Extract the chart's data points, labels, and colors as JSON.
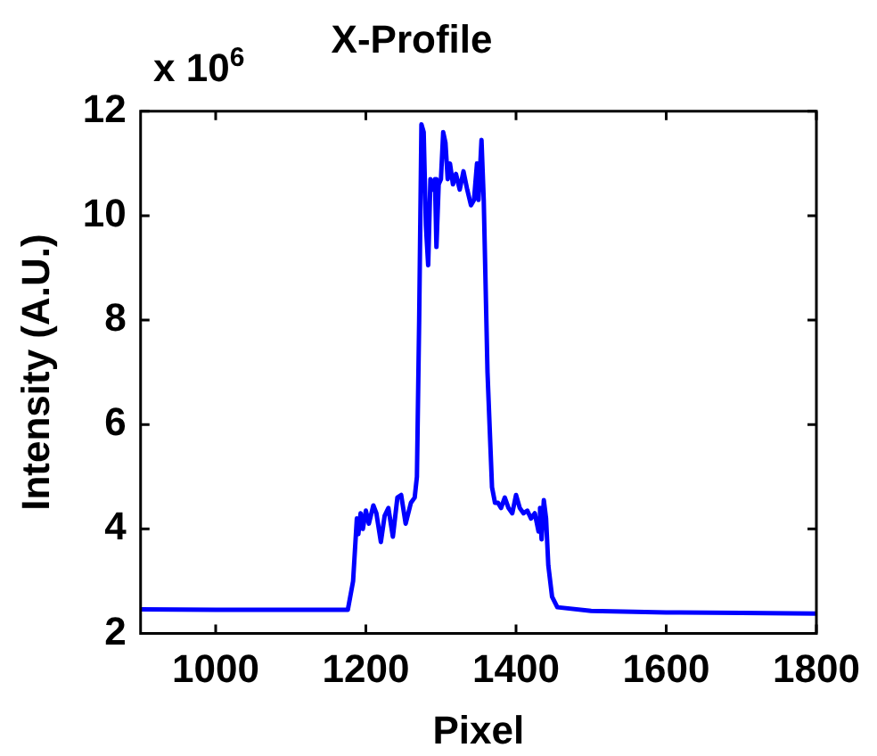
{
  "chart_data": {
    "type": "line",
    "title": "X-Profile",
    "xlabel": "Pixel",
    "ylabel": "Intensity (A.U.)",
    "annotations": [
      "x 10$^{6}$"
    ],
    "xlim": [
      900,
      1800
    ],
    "xticks": [
      1000,
      1200,
      1400,
      1600,
      1800
    ],
    "ylim": [
      2,
      12
    ],
    "yticks": [
      2,
      4,
      6,
      8,
      10,
      12
    ],
    "grid": false,
    "legend": false,
    "marker": "none",
    "line_style": "solid",
    "series": [
      {
        "color": "#0000ff",
        "x": [
          900,
          1000,
          1100,
          1176,
          1183,
          1188,
          1190,
          1193,
          1196,
          1200,
          1204,
          1210,
          1214,
          1220,
          1225,
          1230,
          1236,
          1242,
          1247,
          1253,
          1260,
          1265,
          1268,
          1271,
          1274,
          1277,
          1280,
          1283,
          1286,
          1289,
          1292,
          1294,
          1297,
          1300,
          1303,
          1306,
          1309,
          1312,
          1316,
          1320,
          1325,
          1330,
          1335,
          1340,
          1344,
          1348,
          1350,
          1354,
          1357,
          1362,
          1368,
          1372,
          1376,
          1380,
          1385,
          1390,
          1395,
          1400,
          1405,
          1410,
          1415,
          1420,
          1425,
          1430,
          1432,
          1434,
          1437,
          1440,
          1443,
          1448,
          1455,
          1500,
          1600,
          1700,
          1800
        ],
        "values": [
          2.46,
          2.45,
          2.45,
          2.45,
          3.0,
          4.2,
          3.9,
          4.3,
          4.0,
          4.35,
          4.1,
          4.45,
          4.3,
          3.75,
          4.25,
          4.4,
          3.85,
          4.6,
          4.65,
          4.1,
          4.5,
          4.6,
          5.0,
          8.0,
          11.75,
          11.6,
          9.8,
          9.05,
          10.7,
          10.5,
          10.7,
          9.4,
          10.6,
          10.7,
          11.6,
          11.4,
          10.7,
          11.0,
          10.6,
          10.8,
          10.5,
          10.85,
          10.5,
          10.2,
          10.3,
          11.0,
          10.3,
          11.45,
          10.3,
          7.0,
          4.8,
          4.5,
          4.5,
          4.4,
          4.6,
          4.4,
          4.3,
          4.65,
          4.4,
          4.3,
          4.35,
          4.2,
          4.3,
          3.95,
          4.4,
          3.8,
          4.55,
          4.2,
          3.3,
          2.7,
          2.5,
          2.43,
          2.4,
          2.39,
          2.38
        ]
      }
    ]
  }
}
